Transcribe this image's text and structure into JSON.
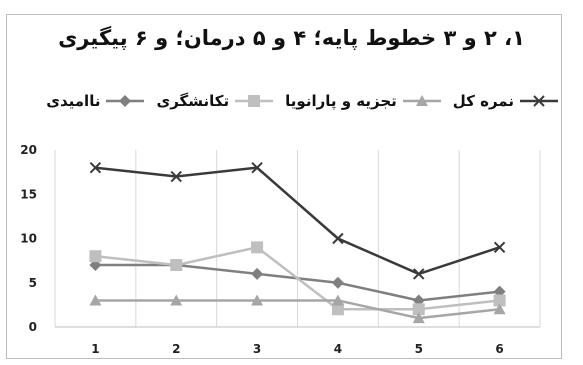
{
  "chart_data": {
    "type": "line",
    "title": "۱، ۲ و ۳ خطوط پایه؛ ۴ و ۵ درمان؛ و ۶ پیگیری",
    "xlabel": "",
    "ylabel": "",
    "x": [
      1,
      2,
      3,
      4,
      5,
      6
    ],
    "ylim": [
      0,
      20
    ],
    "yticks": [
      0,
      5,
      10,
      15,
      20
    ],
    "grid": "vertical",
    "legend_position": "top",
    "series": [
      {
        "name": "نمره کل",
        "values": [
          18,
          17,
          18,
          10,
          6,
          9
        ],
        "color": "#3a3a3a",
        "marker": "x"
      },
      {
        "name": "تجزیه و پارانویا",
        "values": [
          3,
          3,
          3,
          3,
          1,
          2
        ],
        "color": "#a6a6a6",
        "marker": "triangle"
      },
      {
        "name": "تکانشگری",
        "values": [
          8,
          7,
          9,
          2,
          2,
          3
        ],
        "color": "#bfbfbf",
        "marker": "square"
      },
      {
        "name": "ناامیدی",
        "values": [
          7,
          7,
          6,
          5,
          3,
          4
        ],
        "color": "#7f7f7f",
        "marker": "diamond"
      }
    ]
  }
}
